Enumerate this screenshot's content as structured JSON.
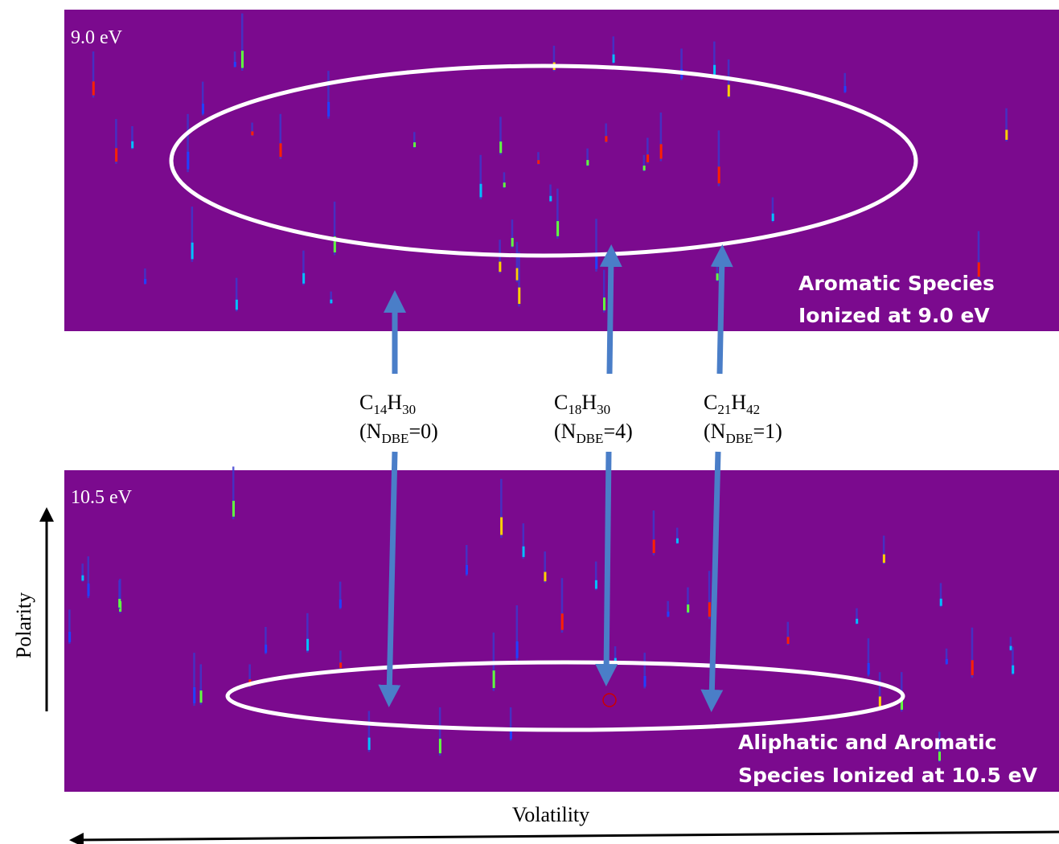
{
  "panels": [
    {
      "energy_label": "9.0 eV",
      "caption": [
        "Aromatic Species",
        "Ionized at 9.0 eV"
      ]
    },
    {
      "energy_label": "10.5 eV",
      "caption": [
        "Aliphatic and Aromatic",
        "Species Ionized at 10.5 eV"
      ]
    }
  ],
  "compounds": [
    {
      "formula": [
        "C",
        "14",
        "H",
        "30"
      ],
      "dbe": [
        "(N",
        "DBE",
        "=0)"
      ]
    },
    {
      "formula": [
        "C",
        "18",
        "H",
        "30"
      ],
      "dbe": [
        "(N",
        "DBE",
        "=4)"
      ]
    },
    {
      "formula": [
        "C",
        "21",
        "H",
        "42"
      ],
      "dbe": [
        "(N",
        "DBE",
        "=1)"
      ]
    }
  ],
  "axes": {
    "y_label": "Polarity",
    "x_label": "Volatility"
  }
}
